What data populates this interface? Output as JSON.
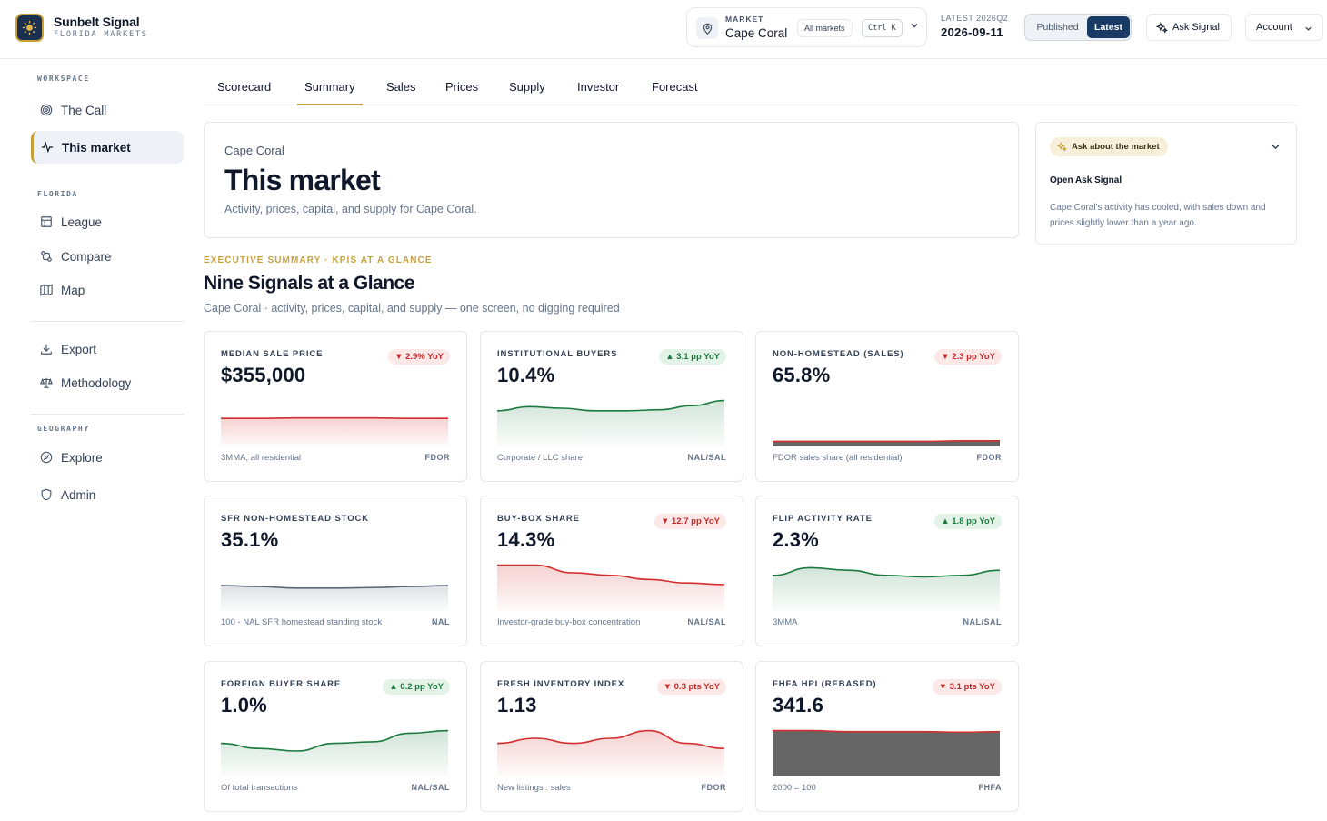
{
  "brand": {
    "name": "Sunbelt Signal",
    "subtitle": "FLORIDA MARKETS"
  },
  "topbar": {
    "market_label": "MARKET",
    "market_value": "Cape Coral",
    "all_markets": "All markets",
    "shortcut": "Ctrl K",
    "latest_label": "LATEST 2026Q2",
    "latest_date": "2026-09-11",
    "published_label": "Published",
    "latest_btn": "Latest",
    "ask_label": "Ask Signal",
    "account_label": "Account"
  },
  "sidebar": {
    "workspace_label": "WORKSPACE",
    "florida_label": "FLORIDA",
    "geography_label": "GEOGRAPHY",
    "items": {
      "the_call": "The Call",
      "this_market": "This market",
      "league": "League",
      "compare": "Compare",
      "map": "Map",
      "export": "Export",
      "methodology": "Methodology",
      "explore": "Explore",
      "admin": "Admin"
    }
  },
  "tabs": [
    "Scorecard",
    "Summary",
    "Sales",
    "Prices",
    "Supply",
    "Investor",
    "Forecast"
  ],
  "active_tab": "Summary",
  "hero": {
    "kicker": "Cape Coral",
    "title": "This market",
    "subtitle": "Activity, prices, capital, and supply for Cape Coral."
  },
  "ask_panel": {
    "chip": "Ask about the market",
    "open": "Open Ask Signal",
    "text": "Cape Coral's activity has cooled, with sales down and prices slightly lower than a year ago."
  },
  "summary": {
    "eyebrow": "EXECUTIVE SUMMARY · KPIS AT A GLANCE",
    "title": "Nine Signals at a Glance",
    "subtitle": "Cape Coral · activity, prices, capital, and supply — one screen, no digging required"
  },
  "colors": {
    "gold": "#c9a13b",
    "navy": "#183a64",
    "down": "#d32f2f",
    "up": "#1b7a3e",
    "neutral": "#5b6778",
    "dark_fill": "#666666"
  },
  "kpis": [
    {
      "label": "MEDIAN SALE PRICE",
      "value": "$355,000",
      "badge": "▼ 2.9% YoY",
      "dir": "down",
      "foot": "3MMA, all residential",
      "src": "FDOR",
      "style": "red",
      "series": [
        0.45,
        0.45,
        0.44,
        0.44,
        0.44,
        0.45,
        0.45
      ]
    },
    {
      "label": "INSTITUTIONAL BUYERS",
      "value": "10.4%",
      "badge": "▲ 3.1 pp YoY",
      "dir": "up",
      "foot": "Corporate / LLC share",
      "src": "NAL/SAL",
      "style": "green",
      "series": [
        0.3,
        0.22,
        0.25,
        0.3,
        0.3,
        0.28,
        0.2,
        0.1
      ]
    },
    {
      "label": "NON-HOMESTEAD (SALES)",
      "value": "65.8%",
      "badge": "▼ 2.3 pp YoY",
      "dir": "down",
      "foot": "FDOR sales share (all residential)",
      "src": "FDOR",
      "style": "dark",
      "series": [
        0.9,
        0.9,
        0.9,
        0.9,
        0.9,
        0.89,
        0.89
      ]
    },
    {
      "label": "SFR NON-HOMESTEAD STOCK",
      "value": "35.1%",
      "badge": "",
      "dir": "none",
      "foot": "100 - NAL SFR homestead standing stock",
      "src": "NAL",
      "style": "gray",
      "series": [
        0.5,
        0.52,
        0.55,
        0.55,
        0.54,
        0.52,
        0.5
      ]
    },
    {
      "label": "BUY-BOX SHARE",
      "value": "14.3%",
      "badge": "▼ 12.7 pp YoY",
      "dir": "down",
      "foot": "Investor-grade buy-box concentration",
      "src": "NAL/SAL",
      "style": "red",
      "series": [
        0.1,
        0.1,
        0.25,
        0.3,
        0.38,
        0.45,
        0.48
      ]
    },
    {
      "label": "FLIP ACTIVITY RATE",
      "value": "2.3%",
      "badge": "▲ 1.8 pp YoY",
      "dir": "up",
      "foot": "3MMA",
      "src": "NAL/SAL",
      "style": "green",
      "series": [
        0.3,
        0.15,
        0.2,
        0.3,
        0.33,
        0.3,
        0.2
      ]
    },
    {
      "label": "FOREIGN BUYER SHARE",
      "value": "1.0%",
      "badge": "▲ 0.2 pp YoY",
      "dir": "up",
      "foot": "Of total transactions",
      "src": "NAL/SAL",
      "style": "green",
      "series": [
        0.35,
        0.45,
        0.5,
        0.35,
        0.32,
        0.15,
        0.1
      ]
    },
    {
      "label": "FRESH INVENTORY INDEX",
      "value": "1.13",
      "badge": "▼ 0.3 pts YoY",
      "dir": "down",
      "foot": "New listings : sales",
      "src": "FDOR",
      "style": "red",
      "series": [
        0.35,
        0.25,
        0.35,
        0.25,
        0.1,
        0.35,
        0.45
      ]
    },
    {
      "label": "FHFA HPI (REBASED)",
      "value": "341.6",
      "badge": "▼ 3.1 pts YoY",
      "dir": "down",
      "foot": "2000 = 100",
      "src": "FHFA",
      "style": "dark",
      "series": [
        0.1,
        0.1,
        0.12,
        0.12,
        0.12,
        0.13,
        0.12
      ]
    }
  ]
}
